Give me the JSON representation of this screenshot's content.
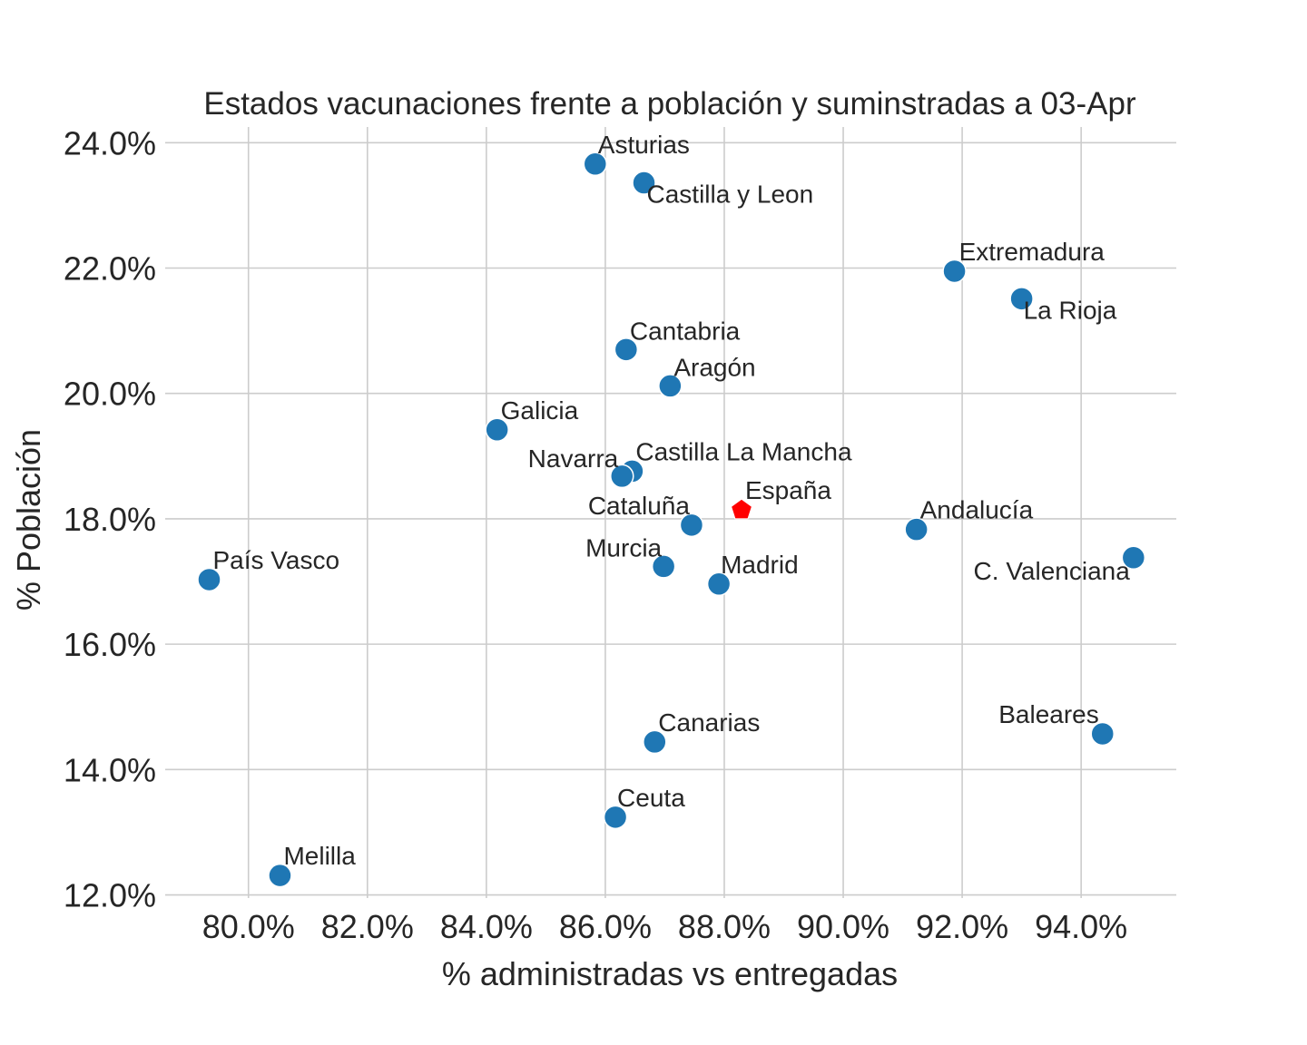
{
  "chart_data": {
    "type": "scatter",
    "title": "Estados vacunaciones frente a población y suminstradas a 03-Apr",
    "xlabel": "% administradas vs entregadas",
    "ylabel": "% Población",
    "xlim": [
      0.786,
      0.956
    ],
    "ylim": [
      0.1195,
      0.2425
    ],
    "xticks": [
      0.8,
      0.82,
      0.84,
      0.86,
      0.88,
      0.9,
      0.92,
      0.94
    ],
    "xtick_labels": [
      "80.0%",
      "82.0%",
      "84.0%",
      "86.0%",
      "88.0%",
      "90.0%",
      "92.0%",
      "94.0%"
    ],
    "yticks": [
      0.12,
      0.14,
      0.16,
      0.18,
      0.2,
      0.22,
      0.24
    ],
    "ytick_labels": [
      "12.0%",
      "14.0%",
      "16.0%",
      "18.0%",
      "20.0%",
      "22.0%",
      "24.0%"
    ],
    "grid": true,
    "legend": "none",
    "colors": {
      "region": "#1f77b4",
      "national": "#ff0000"
    },
    "points": [
      {
        "label": "Asturias",
        "x": 0.8583,
        "y": 0.2366,
        "marker": "circle",
        "label_anchor": "start"
      },
      {
        "label": "Castilla y Leon",
        "x": 0.8665,
        "y": 0.2336,
        "marker": "circle",
        "label_anchor": "start"
      },
      {
        "label": "Extremadura",
        "x": 0.9187,
        "y": 0.2195,
        "marker": "circle",
        "label_anchor": "start"
      },
      {
        "label": "La Rioja",
        "x": 0.93,
        "y": 0.2151,
        "marker": "circle",
        "label_anchor": "start"
      },
      {
        "label": "Cantabria",
        "x": 0.8635,
        "y": 0.207,
        "marker": "circle",
        "label_anchor": "start"
      },
      {
        "label": "Aragón",
        "x": 0.8709,
        "y": 0.2012,
        "marker": "circle",
        "label_anchor": "start"
      },
      {
        "label": "Galicia",
        "x": 0.8418,
        "y": 0.1942,
        "marker": "circle",
        "label_anchor": "start"
      },
      {
        "label": "Castilla La Mancha",
        "x": 0.8645,
        "y": 0.1876,
        "marker": "circle",
        "label_anchor": "start"
      },
      {
        "label": "Navarra",
        "x": 0.8628,
        "y": 0.1868,
        "marker": "circle",
        "label_anchor": "end"
      },
      {
        "label": "España",
        "x": 0.8829,
        "y": 0.1814,
        "marker": "pentagon",
        "label_anchor": "start"
      },
      {
        "label": "Cataluña",
        "x": 0.8745,
        "y": 0.179,
        "marker": "circle",
        "label_anchor": "end"
      },
      {
        "label": "Andalucía",
        "x": 0.9123,
        "y": 0.1783,
        "marker": "circle",
        "label_anchor": "start"
      },
      {
        "label": "C. Valenciana",
        "x": 0.9488,
        "y": 0.1738,
        "marker": "circle",
        "label_anchor": "end"
      },
      {
        "label": "Murcia",
        "x": 0.8698,
        "y": 0.1724,
        "marker": "circle",
        "label_anchor": "end"
      },
      {
        "label": "Madrid",
        "x": 0.8791,
        "y": 0.1696,
        "marker": "circle",
        "label_anchor": "start"
      },
      {
        "label": "País Vasco",
        "x": 0.7934,
        "y": 0.1703,
        "marker": "circle",
        "label_anchor": "start"
      },
      {
        "label": "Canarias",
        "x": 0.8683,
        "y": 0.1444,
        "marker": "circle",
        "label_anchor": "start"
      },
      {
        "label": "Baleares",
        "x": 0.9436,
        "y": 0.1457,
        "marker": "circle",
        "label_anchor": "end"
      },
      {
        "label": "Ceuta",
        "x": 0.8617,
        "y": 0.1324,
        "marker": "circle",
        "label_anchor": "start"
      },
      {
        "label": "Melilla",
        "x": 0.8053,
        "y": 0.1231,
        "marker": "circle",
        "label_anchor": "start"
      }
    ]
  }
}
